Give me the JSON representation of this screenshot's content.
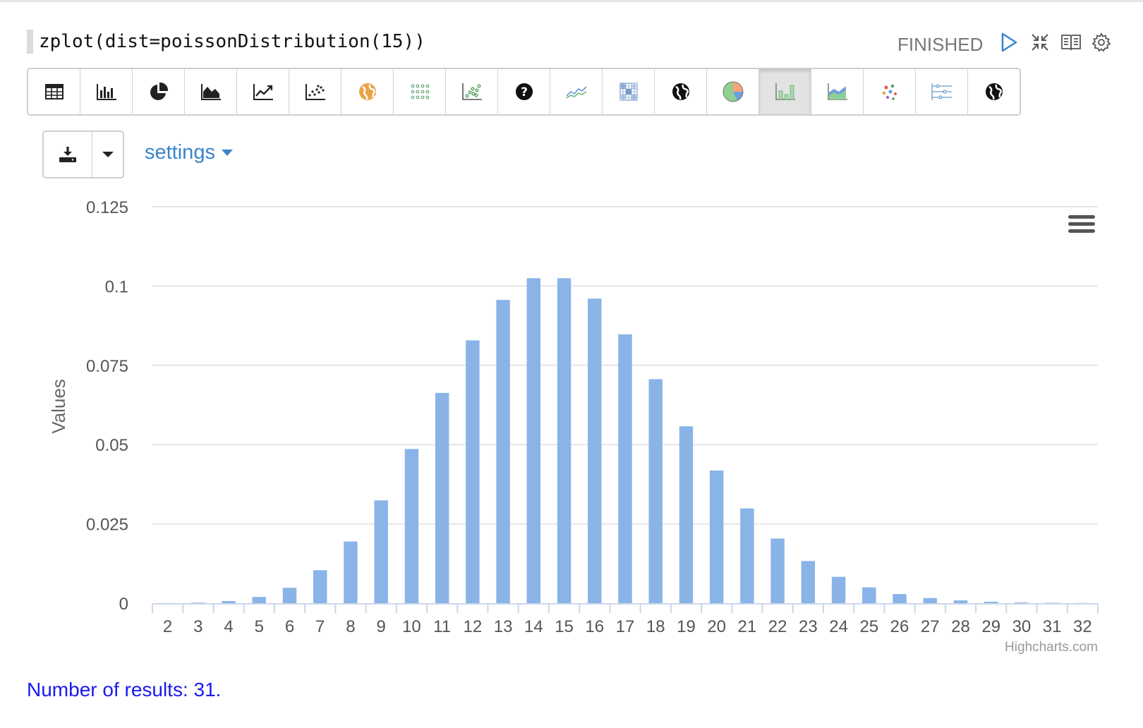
{
  "paragraph": {
    "code": "zplot(dist=poissonDistribution(15))",
    "status": "FINISHED",
    "icons": [
      "run-icon",
      "collapse-icon",
      "book-icon",
      "gear-icon"
    ]
  },
  "toolbar": {
    "buttons": [
      {
        "name": "table-icon"
      },
      {
        "name": "bar-chart-icon"
      },
      {
        "name": "pie-chart-icon"
      },
      {
        "name": "area-chart-icon"
      },
      {
        "name": "line-chart-icon"
      },
      {
        "name": "scatter-chart-icon"
      },
      {
        "name": "globe-orange-icon"
      },
      {
        "name": "dot-grid-icon"
      },
      {
        "name": "scatter-green-icon"
      },
      {
        "name": "question-icon"
      },
      {
        "name": "line-multi-icon"
      },
      {
        "name": "heatmap-icon"
      },
      {
        "name": "globe-dark-icon"
      },
      {
        "name": "pie-color-icon"
      },
      {
        "name": "column-green-icon",
        "active": true
      },
      {
        "name": "area-blue-green-icon"
      },
      {
        "name": "bubble-dots-icon"
      },
      {
        "name": "slider-lines-icon"
      },
      {
        "name": "globe-black-icon"
      }
    ]
  },
  "download": {
    "icon": "download-icon",
    "caret": "caret-down-icon"
  },
  "settings": {
    "label": "settings"
  },
  "chart_data": {
    "type": "bar",
    "ylabel": "Values",
    "xlabel": "",
    "ylim": [
      0,
      0.125
    ],
    "yticks": [
      "0",
      "0.025",
      "0.05",
      "0.075",
      "0.1",
      "0.125"
    ],
    "categories": [
      "2",
      "3",
      "4",
      "5",
      "6",
      "7",
      "8",
      "9",
      "10",
      "11",
      "12",
      "13",
      "14",
      "15",
      "16",
      "17",
      "18",
      "19",
      "20",
      "21",
      "22",
      "23",
      "24",
      "25",
      "26",
      "27",
      "28",
      "29",
      "30",
      "31",
      "32"
    ],
    "values": [
      3e-05,
      0.00017,
      0.00065,
      0.00194,
      0.00484,
      0.01037,
      0.01944,
      0.03241,
      0.04861,
      0.06629,
      0.08286,
      0.09561,
      0.10244,
      0.10244,
      0.09603,
      0.08474,
      0.07061,
      0.05575,
      0.04181,
      0.02986,
      0.02036,
      0.01328,
      0.0083,
      0.00498,
      0.00287,
      0.0016,
      0.00086,
      0.00044,
      0.00022,
      0.00011,
      5e-05
    ],
    "bar_color": "#8ab4e7",
    "grid": true,
    "credit": "Highcharts.com",
    "menu_icon": "hamburger-menu-icon"
  },
  "footer": {
    "results": "Number of results: 31."
  }
}
